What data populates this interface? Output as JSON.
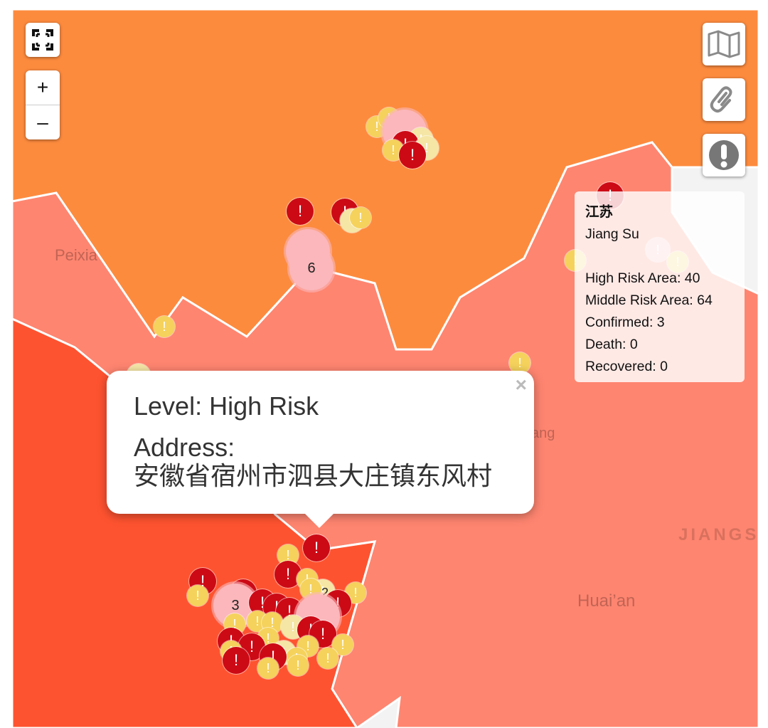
{
  "controls": {
    "fullscreen_icon": "fullscreen-icon",
    "zoom_in_label": "+",
    "zoom_out_label": "–",
    "map_icon": "map-icon",
    "link_icon": "link-icon",
    "alert_icon": "exclamation-icon"
  },
  "colors": {
    "province_orange": "#fd8b3e",
    "province_salmon": "#fe8570",
    "province_red": "#fe5330",
    "province_grey": "#f3f3f3",
    "border": "#ffffff",
    "marker_high": "#cc0a16",
    "marker_middle": "#f5d25c",
    "cluster": "#fbb7bb"
  },
  "map_labels": {
    "peixian": "Peixia",
    "jiang": "ang",
    "jiangsu": "JIANGS",
    "huaian": "Huai’an"
  },
  "marker_glyph": "!",
  "clusters": [
    "6",
    "3",
    "2"
  ],
  "info_panel": {
    "title": "江苏",
    "subtitle": "Jiang Su",
    "high_risk": "High Risk Area: 40",
    "middle_risk": "Middle Risk Area: 64",
    "confirmed": "Confirmed: 3",
    "death": "Death: 0",
    "recovered": "Recovered: 0"
  },
  "popup": {
    "close": "×",
    "level": "Level: High Risk",
    "address_label": "Address:",
    "address_value": "安徽省宿州市泗县大庄镇东风村"
  }
}
